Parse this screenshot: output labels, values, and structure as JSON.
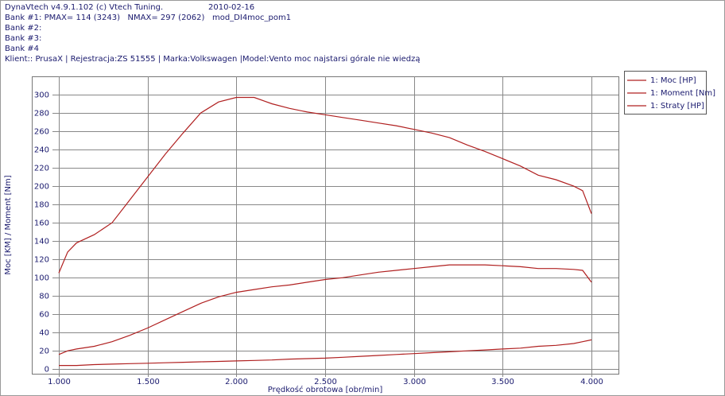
{
  "header": {
    "app": "DynaVtech v4.9.1.102 (c) Vtech Tuning.",
    "date": "2010-02-16",
    "bank1": "Bank #1: PMAX= 114 (3243)   NMAX= 297 (2062)   mod_DI4moc_pom1",
    "bank2": "Bank #2:",
    "bank3": "Bank #3:",
    "bank4": "Bank #4",
    "client": "Klient:: PrusaX | Rejestracja:ZS 51555 | Marka:Volkswagen |Model:Vento moc najstarsi górale nie wiedzą"
  },
  "chart_data": {
    "type": "line",
    "xlabel": "Prędkość obrotowa [obr/min]",
    "ylabel": "Moc [KM] / Moment [Nm]",
    "x": [
      1000,
      1050,
      1100,
      1200,
      1300,
      1400,
      1500,
      1600,
      1700,
      1800,
      1900,
      2000,
      2100,
      2200,
      2300,
      2400,
      2500,
      2600,
      2700,
      2800,
      2900,
      3000,
      3100,
      3200,
      3300,
      3400,
      3500,
      3600,
      3700,
      3800,
      3900,
      3950,
      4000
    ],
    "series": [
      {
        "name": "1: Moc [HP]",
        "color": "#b02020",
        "values": [
          16,
          20,
          22,
          25,
          30,
          37,
          45,
          54,
          63,
          72,
          79,
          84,
          87,
          90,
          92,
          95,
          98,
          100,
          103,
          106,
          108,
          110,
          112,
          114,
          114,
          114,
          113,
          112,
          110,
          110,
          109,
          108,
          95
        ]
      },
      {
        "name": "1: Moment [Nm]",
        "color": "#b02020",
        "values": [
          105,
          128,
          138,
          147,
          160,
          185,
          210,
          235,
          258,
          280,
          292,
          297,
          297,
          290,
          285,
          281,
          278,
          275,
          272,
          269,
          266,
          262,
          258,
          253,
          245,
          238,
          230,
          222,
          212,
          207,
          200,
          195,
          170
        ]
      },
      {
        "name": "1: Straty [HP]",
        "color": "#b02020",
        "values": [
          4,
          4,
          4,
          5,
          5.5,
          6,
          6.5,
          7,
          7.5,
          8,
          8.5,
          9,
          9.5,
          10,
          11,
          11.5,
          12,
          13,
          14,
          15,
          16,
          17,
          18,
          19,
          20,
          21,
          22,
          23,
          25,
          26,
          28,
          30,
          32
        ]
      }
    ],
    "xlim": [
      848,
      4152
    ],
    "ylim": [
      -5,
      320
    ],
    "xticks": [
      {
        "value": 1000,
        "label": "1.000"
      },
      {
        "value": 1500,
        "label": "1.500"
      },
      {
        "value": 2000,
        "label": "2.000"
      },
      {
        "value": 2500,
        "label": "2.500"
      },
      {
        "value": 3000,
        "label": "3.000"
      },
      {
        "value": 3500,
        "label": "3.500"
      },
      {
        "value": 4000,
        "label": "4.000"
      }
    ],
    "yticks": [
      0,
      20,
      40,
      60,
      80,
      100,
      120,
      140,
      160,
      180,
      200,
      220,
      240,
      260,
      280,
      300
    ],
    "grid": true,
    "legend": "right"
  }
}
